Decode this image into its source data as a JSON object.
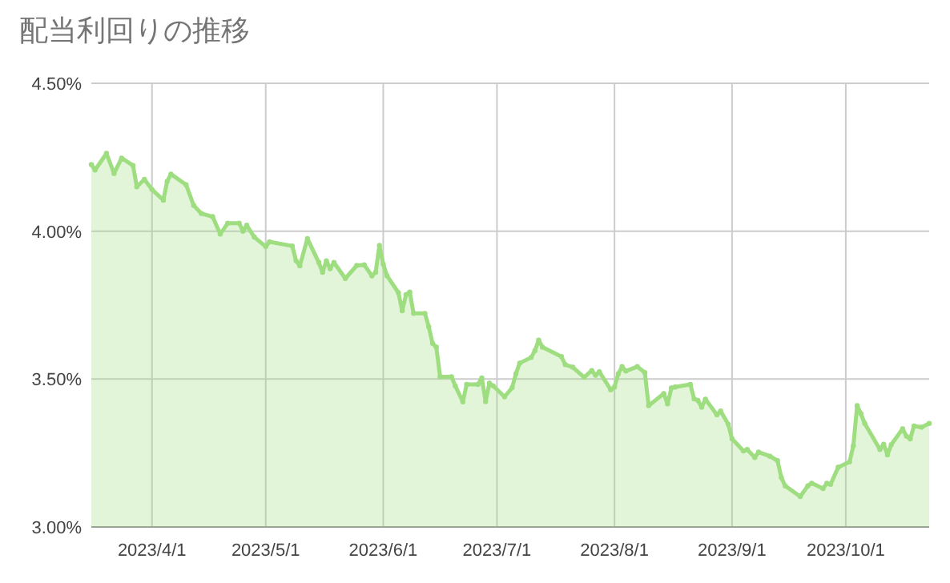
{
  "chart_data": {
    "type": "area",
    "title": "配当利回りの推移",
    "xlim": [
      "2023-03-16",
      "2023-10-23"
    ],
    "xticks": [
      {
        "value": "2023-04-01",
        "label": "2023/4/1"
      },
      {
        "value": "2023-05-01",
        "label": "2023/5/1"
      },
      {
        "value": "2023-06-01",
        "label": "2023/6/1"
      },
      {
        "value": "2023-07-01",
        "label": "2023/7/1"
      },
      {
        "value": "2023-08-01",
        "label": "2023/8/1"
      },
      {
        "value": "2023-09-01",
        "label": "2023/9/1"
      },
      {
        "value": "2023-10-01",
        "label": "2023/10/1"
      }
    ],
    "ylim": [
      3,
      4.5
    ],
    "yticks": [
      {
        "value": 3,
        "label": "3.00%"
      },
      {
        "value": 3.5,
        "label": "3.50%"
      },
      {
        "value": 4,
        "label": "4.00%"
      },
      {
        "value": 4.5,
        "label": "4.50%"
      }
    ],
    "grid": true,
    "marker": "circle",
    "line_style": "solid",
    "x": [
      "2023-03-16",
      "2023-03-17",
      "2023-03-20",
      "2023-03-22",
      "2023-03-24",
      "2023-03-27",
      "2023-03-28",
      "2023-03-30",
      "2023-04-01",
      "2023-04-04",
      "2023-04-05",
      "2023-04-06",
      "2023-04-10",
      "2023-04-12",
      "2023-04-14",
      "2023-04-17",
      "2023-04-19",
      "2023-04-21",
      "2023-04-24",
      "2023-04-25",
      "2023-04-26",
      "2023-04-28",
      "2023-05-01",
      "2023-05-02",
      "2023-05-08",
      "2023-05-09",
      "2023-05-10",
      "2023-05-12",
      "2023-05-15",
      "2023-05-16",
      "2023-05-17",
      "2023-05-18",
      "2023-05-19",
      "2023-05-22",
      "2023-05-25",
      "2023-05-27",
      "2023-05-29",
      "2023-05-30",
      "2023-05-31",
      "2023-06-01",
      "2023-06-02",
      "2023-06-05",
      "2023-06-06",
      "2023-06-07",
      "2023-06-08",
      "2023-06-09",
      "2023-06-12",
      "2023-06-13",
      "2023-06-14",
      "2023-06-15",
      "2023-06-16",
      "2023-06-19",
      "2023-06-20",
      "2023-06-22",
      "2023-06-23",
      "2023-06-26",
      "2023-06-27",
      "2023-06-28",
      "2023-06-29",
      "2023-06-30",
      "2023-07-03",
      "2023-07-05",
      "2023-07-06",
      "2023-07-07",
      "2023-07-10",
      "2023-07-11",
      "2023-07-12",
      "2023-07-13",
      "2023-07-18",
      "2023-07-19",
      "2023-07-21",
      "2023-07-24",
      "2023-07-26",
      "2023-07-27",
      "2023-07-28",
      "2023-07-31",
      "2023-08-01",
      "2023-08-02",
      "2023-08-03",
      "2023-08-04",
      "2023-08-07",
      "2023-08-09",
      "2023-08-10",
      "2023-08-14",
      "2023-08-15",
      "2023-08-16",
      "2023-08-17",
      "2023-08-21",
      "2023-08-22",
      "2023-08-23",
      "2023-08-24",
      "2023-08-25",
      "2023-08-28",
      "2023-08-29",
      "2023-08-31",
      "2023-09-01",
      "2023-09-04",
      "2023-09-05",
      "2023-09-07",
      "2023-09-08",
      "2023-09-11",
      "2023-09-13",
      "2023-09-14",
      "2023-09-15",
      "2023-09-19",
      "2023-09-21",
      "2023-09-22",
      "2023-09-25",
      "2023-09-26",
      "2023-09-27",
      "2023-09-29",
      "2023-10-02",
      "2023-10-03",
      "2023-10-04",
      "2023-10-05",
      "2023-10-06",
      "2023-10-10",
      "2023-10-11",
      "2023-10-12",
      "2023-10-13",
      "2023-10-16",
      "2023-10-17",
      "2023-10-18",
      "2023-10-19",
      "2023-10-21",
      "2023-10-23"
    ],
    "series": [
      {
        "color": "#9ede80",
        "values": [
          4.225,
          4.207,
          4.263,
          4.195,
          4.247,
          4.222,
          4.15,
          4.175,
          4.141,
          4.105,
          4.168,
          4.193,
          4.157,
          4.087,
          4.06,
          4.049,
          3.99,
          4.027,
          4.027,
          4.0,
          4.02,
          3.98,
          3.948,
          3.964,
          3.95,
          3.9,
          3.883,
          3.975,
          3.894,
          3.861,
          3.9,
          3.873,
          3.894,
          3.84,
          3.884,
          3.886,
          3.849,
          3.861,
          3.952,
          3.888,
          3.849,
          3.792,
          3.731,
          3.785,
          3.794,
          3.722,
          3.722,
          3.677,
          3.621,
          3.608,
          3.508,
          3.508,
          3.477,
          3.423,
          3.482,
          3.482,
          3.504,
          3.424,
          3.486,
          3.477,
          3.44,
          3.471,
          3.518,
          3.554,
          3.573,
          3.596,
          3.632,
          3.608,
          3.576,
          3.549,
          3.54,
          3.506,
          3.529,
          3.513,
          3.525,
          3.464,
          3.473,
          3.518,
          3.542,
          3.527,
          3.542,
          3.522,
          3.41,
          3.451,
          3.416,
          3.47,
          3.473,
          3.482,
          3.433,
          3.428,
          3.405,
          3.432,
          3.379,
          3.392,
          3.347,
          3.298,
          3.257,
          3.262,
          3.235,
          3.253,
          3.239,
          3.224,
          3.167,
          3.139,
          3.103,
          3.139,
          3.148,
          3.13,
          3.148,
          3.144,
          3.202,
          3.22,
          3.275,
          3.41,
          3.383,
          3.35,
          3.262,
          3.28,
          3.244,
          3.278,
          3.332,
          3.307,
          3.298,
          3.341,
          3.337,
          3.35
        ]
      }
    ]
  }
}
